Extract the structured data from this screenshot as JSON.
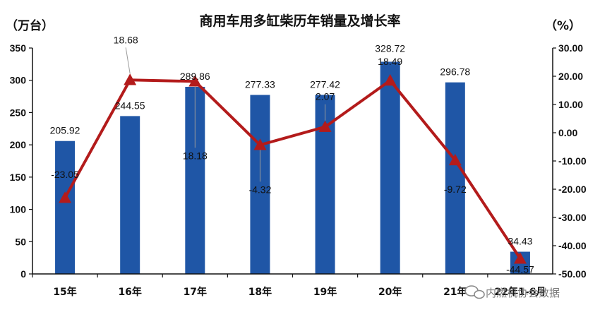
{
  "chart_data": {
    "type": "bar",
    "title": "商用车用多缸柴历年销量及增长率",
    "left_unit": "（万台）",
    "right_unit": "（%）",
    "categories": [
      "15年",
      "16年",
      "17年",
      "18年",
      "19年",
      "20年",
      "21年",
      "22年1-6月"
    ],
    "series": [
      {
        "type": "bar",
        "axis": "left",
        "values": [
          205.92,
          244.55,
          289.86,
          277.33,
          277.42,
          328.72,
          296.78,
          34.43
        ],
        "labels": [
          "205.92",
          "244.55",
          "289.86",
          "277.33",
          "277.42",
          "328.72",
          "296.78",
          "34.43"
        ]
      },
      {
        "type": "line",
        "axis": "right",
        "marker": "triangle",
        "values": [
          -23.05,
          18.68,
          18.18,
          -4.32,
          2.07,
          18.49,
          -9.72,
          -44.57
        ],
        "labels": [
          "-23.05",
          "18.68",
          "18.18",
          "-4.32",
          "2.07",
          "18.49",
          "-9.72",
          "-44.57"
        ]
      }
    ],
    "left_axis": {
      "min": 0,
      "max": 350,
      "step": 50,
      "ticks": [
        "0",
        "50",
        "100",
        "150",
        "200",
        "250",
        "300",
        "350"
      ]
    },
    "right_axis": {
      "min": -50,
      "max": 30,
      "step": 10,
      "ticks": [
        "-50.00",
        "-40.00",
        "-30.00",
        "-20.00",
        "-10.00",
        "0.00",
        "10.00",
        "20.00",
        "30.00"
      ]
    },
    "grid": false,
    "legend": "none",
    "colors": {
      "bar": "#1f56a6",
      "line": "#b31b1b",
      "axis": "#111111"
    }
  },
  "watermark": {
    "text": "内燃机协会数据",
    "icon": "wechat-icon"
  }
}
